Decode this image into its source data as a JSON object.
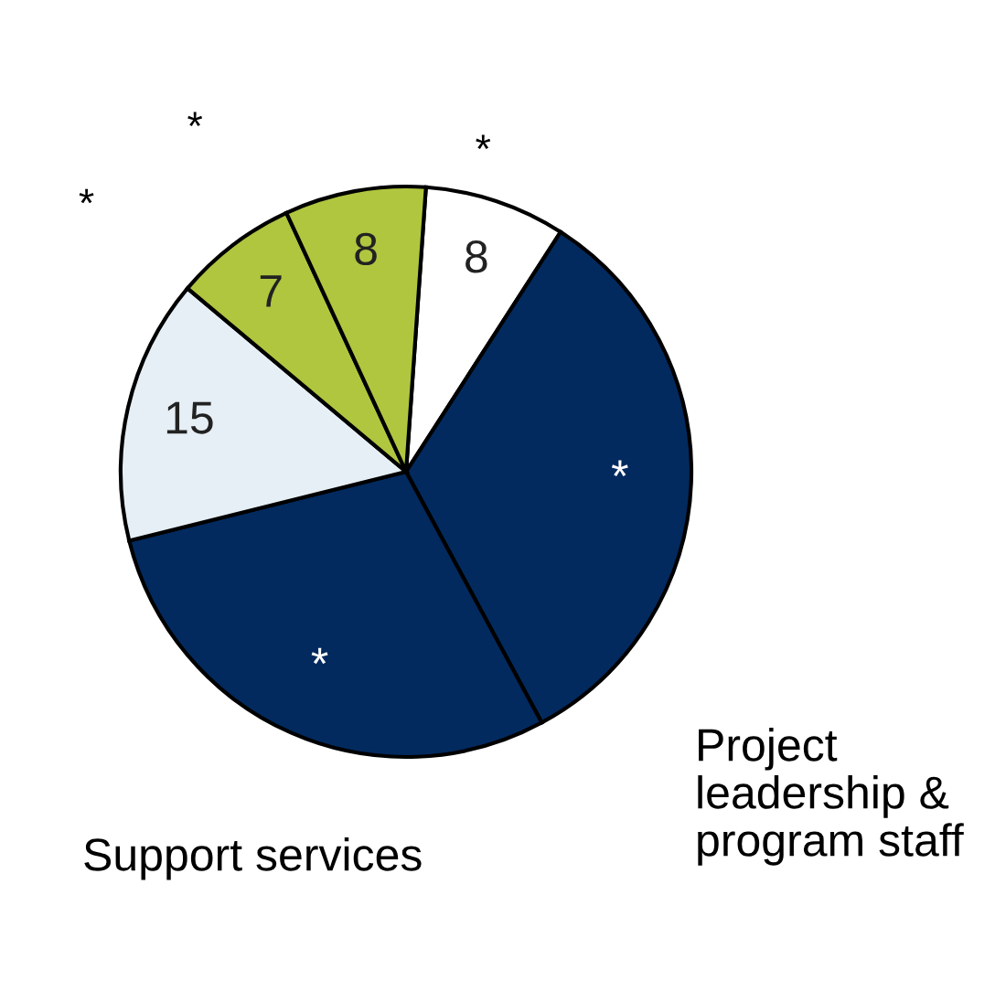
{
  "chart_data": {
    "type": "pie",
    "categories": [
      null,
      "Project leadership & program staff",
      "Support services",
      null,
      null,
      null
    ],
    "values": [
      8,
      33,
      29,
      15,
      7,
      8
    ],
    "colors": [
      "#ffffff",
      "#022a5e",
      "#022a5e",
      "#e6eff5",
      "#b0c63f",
      "#b0c63f"
    ],
    "value_labels": [
      "8",
      "*",
      "*",
      "15",
      "7",
      "8"
    ],
    "annotations": [
      "*",
      "*",
      "*"
    ]
  }
}
